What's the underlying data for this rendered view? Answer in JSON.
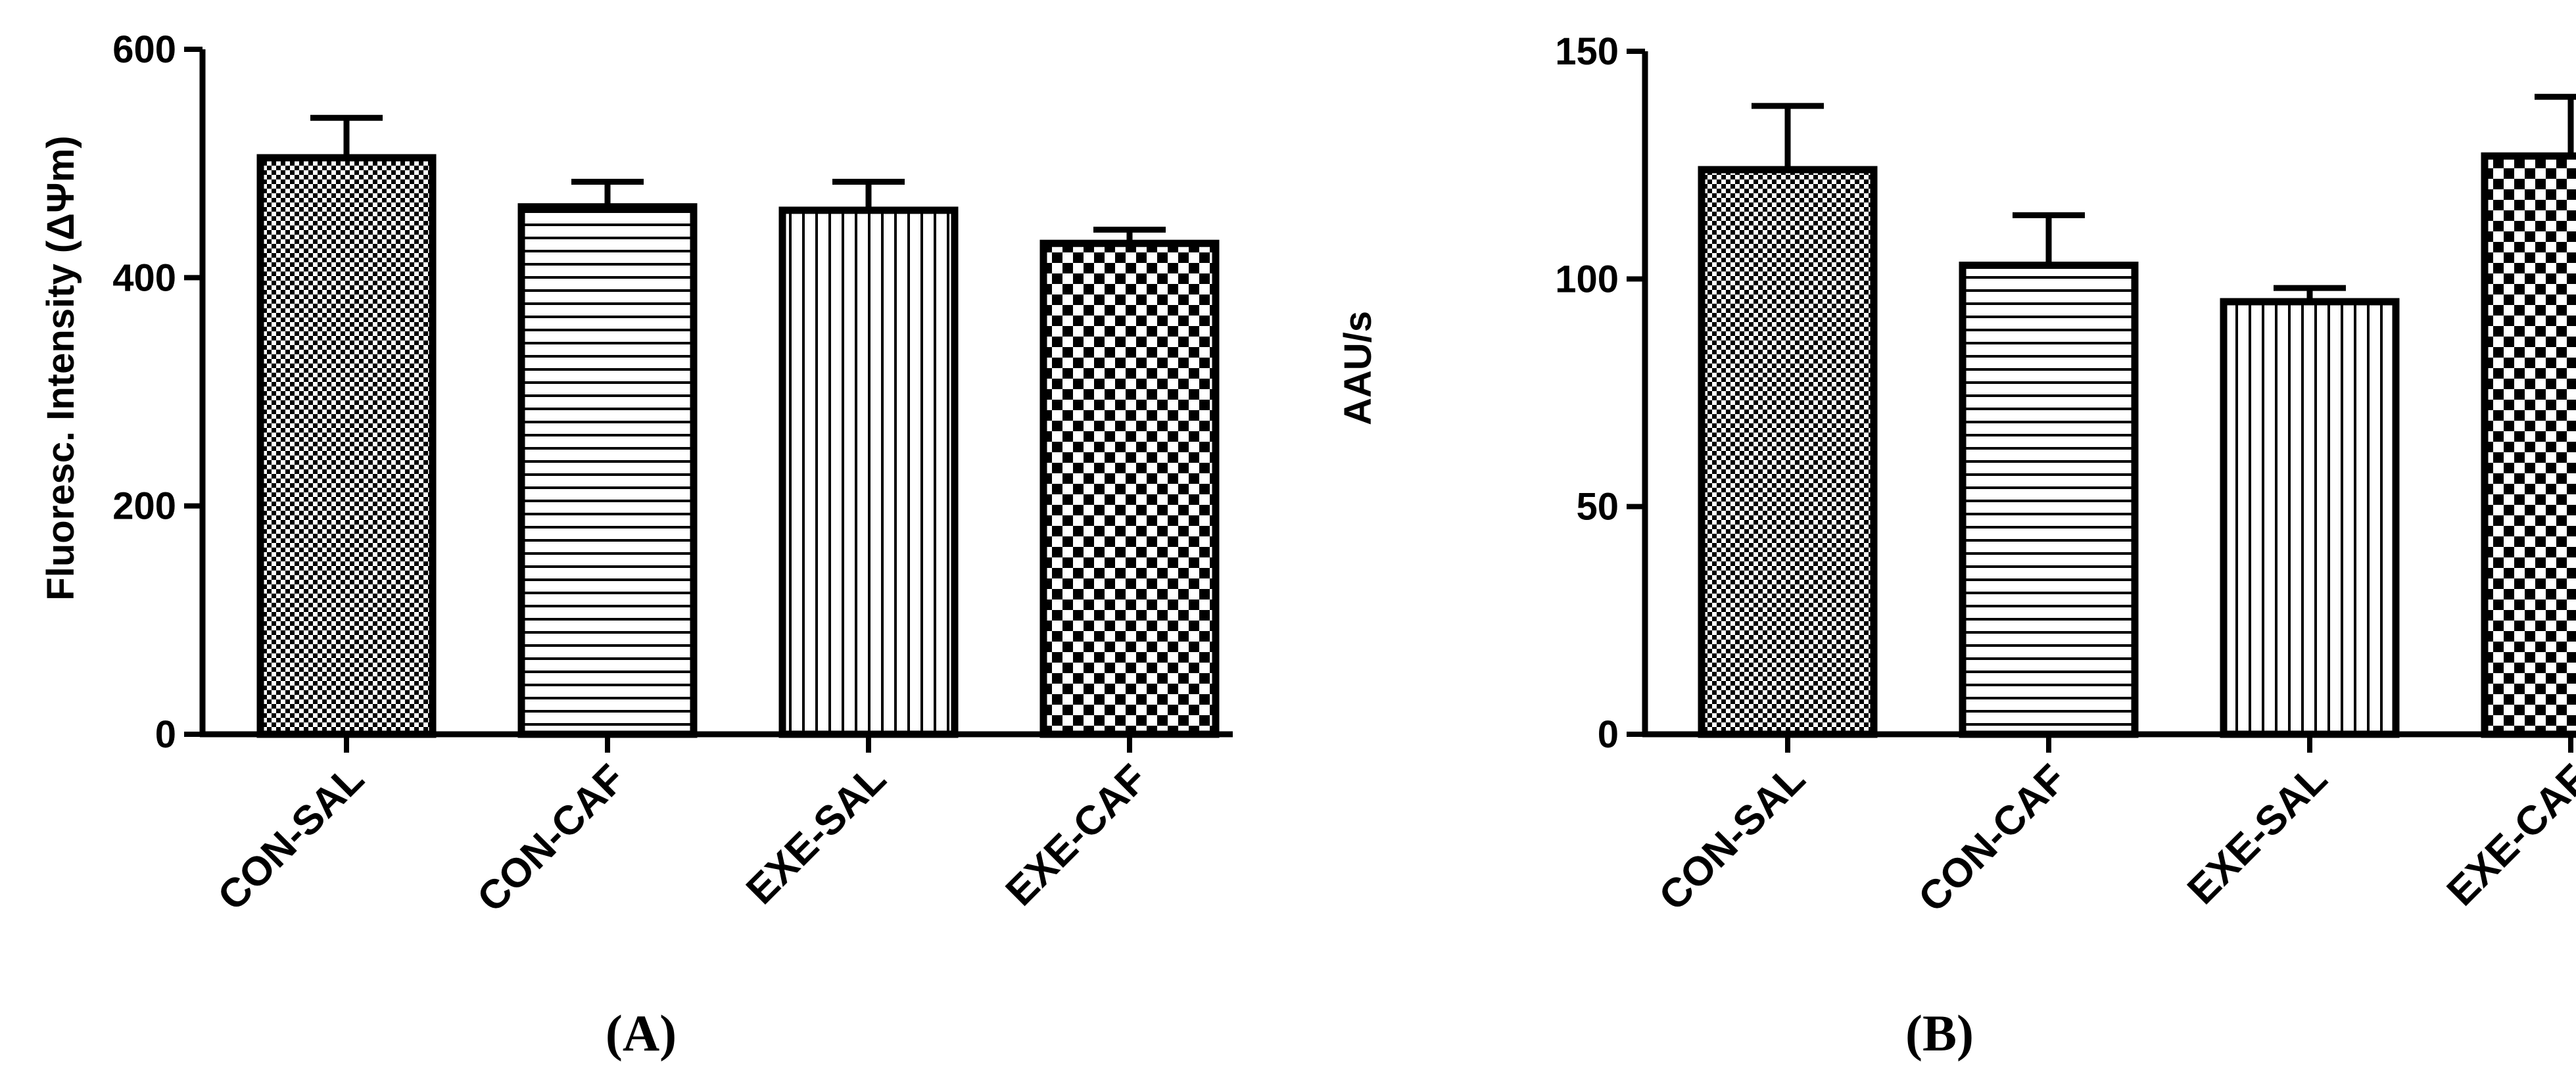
{
  "chart_data": [
    {
      "type": "bar",
      "panel_label": "(A)",
      "ylabel": "Fluoresc. Intensity (ΔΨm)",
      "categories": [
        "CON-SAL",
        "CON-CAF",
        "EXE-SAL",
        "EXE-CAF"
      ],
      "values": [
        505,
        462,
        459,
        430
      ],
      "errors": [
        35,
        22,
        25,
        12
      ],
      "ylim": [
        0,
        600
      ],
      "yticks": [
        0,
        200,
        400,
        600
      ],
      "patterns": [
        "fine-check",
        "horizontal-lines",
        "vertical-lines",
        "coarse-check"
      ],
      "grid": false,
      "legend": "none"
    },
    {
      "type": "bar",
      "panel_label": "(B)",
      "ylabel": "AAU/s",
      "categories": [
        "CON-SAL",
        "CON-CAF",
        "EXE-SAL",
        "EXE-CAF"
      ],
      "values": [
        124,
        103,
        95,
        127
      ],
      "errors": [
        14,
        11,
        3,
        13
      ],
      "ylim": [
        0,
        150
      ],
      "yticks": [
        0,
        50,
        100,
        150
      ],
      "patterns": [
        "fine-check",
        "horizontal-lines",
        "vertical-lines",
        "coarse-check"
      ],
      "grid": false,
      "legend": "none"
    }
  ]
}
